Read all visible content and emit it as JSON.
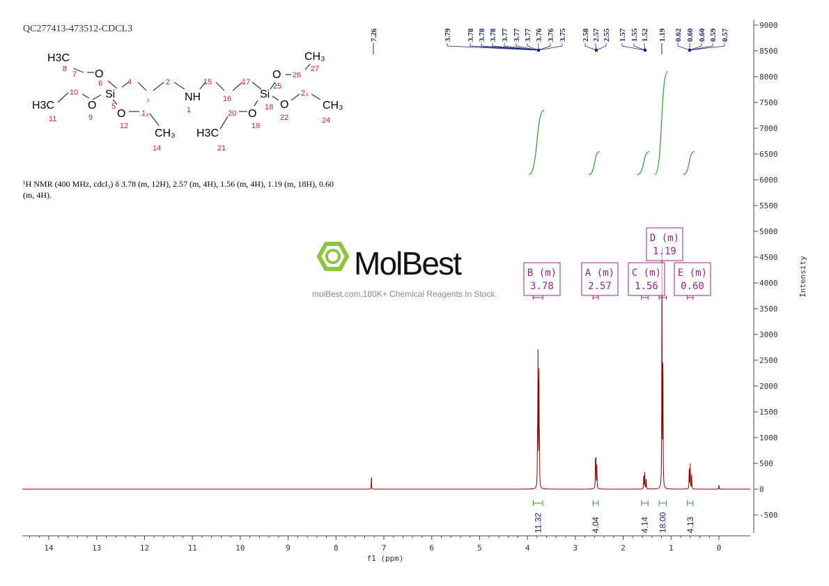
{
  "title": "QC277413-473512-CDCL3",
  "description": [
    "¹H NMR (400 MHz, cdcl₃) δ 3.78 (m, 12H), 2.57 (m, 4H), 1.56 (m, 4H), 1.19 (m, 18H), 0.60",
    "(m, 4H)."
  ],
  "watermark": {
    "logo": "MolBest",
    "tagline": "molBest.com,180K+ Chemical Reagents In Stock."
  },
  "structure": {
    "labels": [
      "H3C",
      "8",
      "7",
      "O",
      "6",
      "Si",
      "10",
      "H3C",
      "11",
      "O",
      "9",
      "5",
      "O",
      "12",
      "13",
      "CH3",
      "14",
      "4",
      "3",
      "2",
      "NH",
      "1",
      "15",
      "16",
      "17",
      "Si",
      "25",
      "18",
      "O",
      "26",
      "27",
      "CH3",
      "O",
      "22",
      "23",
      "CH3",
      "24",
      "O",
      "19",
      "20",
      "H3C",
      "21"
    ]
  },
  "chart_data": {
    "type": "line",
    "xlabel": "f1 (ppm)",
    "ylabel": "Intensity",
    "xlim": [
      14.6,
      -0.65
    ],
    "ylim": [
      -900,
      9200
    ],
    "xticks": [
      14,
      13,
      12,
      11,
      10,
      9,
      8,
      7,
      6,
      5,
      4,
      3,
      2,
      1,
      0
    ],
    "yticks": [
      9000,
      8500,
      8000,
      7500,
      7000,
      6500,
      6000,
      5500,
      5000,
      4500,
      4000,
      3500,
      3000,
      2500,
      2000,
      1500,
      1000,
      500,
      0,
      -500
    ],
    "peaks": [
      {
        "ppm": 7.26,
        "height": 250
      },
      {
        "ppm": 3.79,
        "height": 900
      },
      {
        "ppm": 3.78,
        "height": 2500
      },
      {
        "ppm": 3.76,
        "height": 2400
      },
      {
        "ppm": 3.75,
        "height": 700
      },
      {
        "ppm": 2.58,
        "height": 500
      },
      {
        "ppm": 2.57,
        "height": 600
      },
      {
        "ppm": 2.55,
        "height": 450
      },
      {
        "ppm": 1.57,
        "height": 280
      },
      {
        "ppm": 1.55,
        "height": 320
      },
      {
        "ppm": 1.52,
        "height": 200
      },
      {
        "ppm": 1.19,
        "height": 4600
      },
      {
        "ppm": 1.17,
        "height": 2600
      },
      {
        "ppm": 0.62,
        "height": 420
      },
      {
        "ppm": 0.6,
        "height": 480
      },
      {
        "ppm": 0.57,
        "height": 300
      },
      {
        "ppm": 0.0,
        "height": 80
      }
    ],
    "peak_labels": [
      {
        "group": [
          "3.79",
          "3.78",
          "3.78",
          "3.78",
          "3.77",
          "3.77",
          "3.77",
          "3.76",
          "3.76",
          "3.75"
        ],
        "center": 3.78
      },
      {
        "group": [
          "2.58",
          "2.57",
          "2.55"
        ],
        "center": 2.57
      },
      {
        "group": [
          "1.57",
          "1.55",
          "1.52"
        ],
        "center": 1.55
      },
      {
        "group": [
          "1.19"
        ],
        "center": 1.19
      },
      {
        "group": [
          "0.62",
          "0.60",
          "0.60",
          "0.59",
          "0.57"
        ],
        "center": 0.6
      },
      {
        "group": [
          "7.26"
        ],
        "center": 7.26
      }
    ],
    "multiplets": [
      {
        "label": "B (m)",
        "shift": "3.78"
      },
      {
        "label": "A (m)",
        "shift": "2.57"
      },
      {
        "label": "C (m)",
        "shift": "1.56"
      },
      {
        "label": "D (m)",
        "shift": "1.19"
      },
      {
        "label": "E (m)",
        "shift": "0.60"
      }
    ],
    "integrals": [
      {
        "value": "11.32",
        "from": 3.88,
        "to": 3.68
      },
      {
        "value": "4.04",
        "from": 2.63,
        "to": 2.52
      },
      {
        "value": "4.14",
        "from": 1.62,
        "to": 1.48
      },
      {
        "value": "18.00",
        "from": 1.25,
        "to": 1.1
      },
      {
        "value": "4.13",
        "from": 0.66,
        "to": 0.54
      }
    ],
    "colors": {
      "spectrum": "#8b0000",
      "integral": "#2e9a2e",
      "peak_label": "#1a237e",
      "multiplet": "#a0208f"
    }
  }
}
